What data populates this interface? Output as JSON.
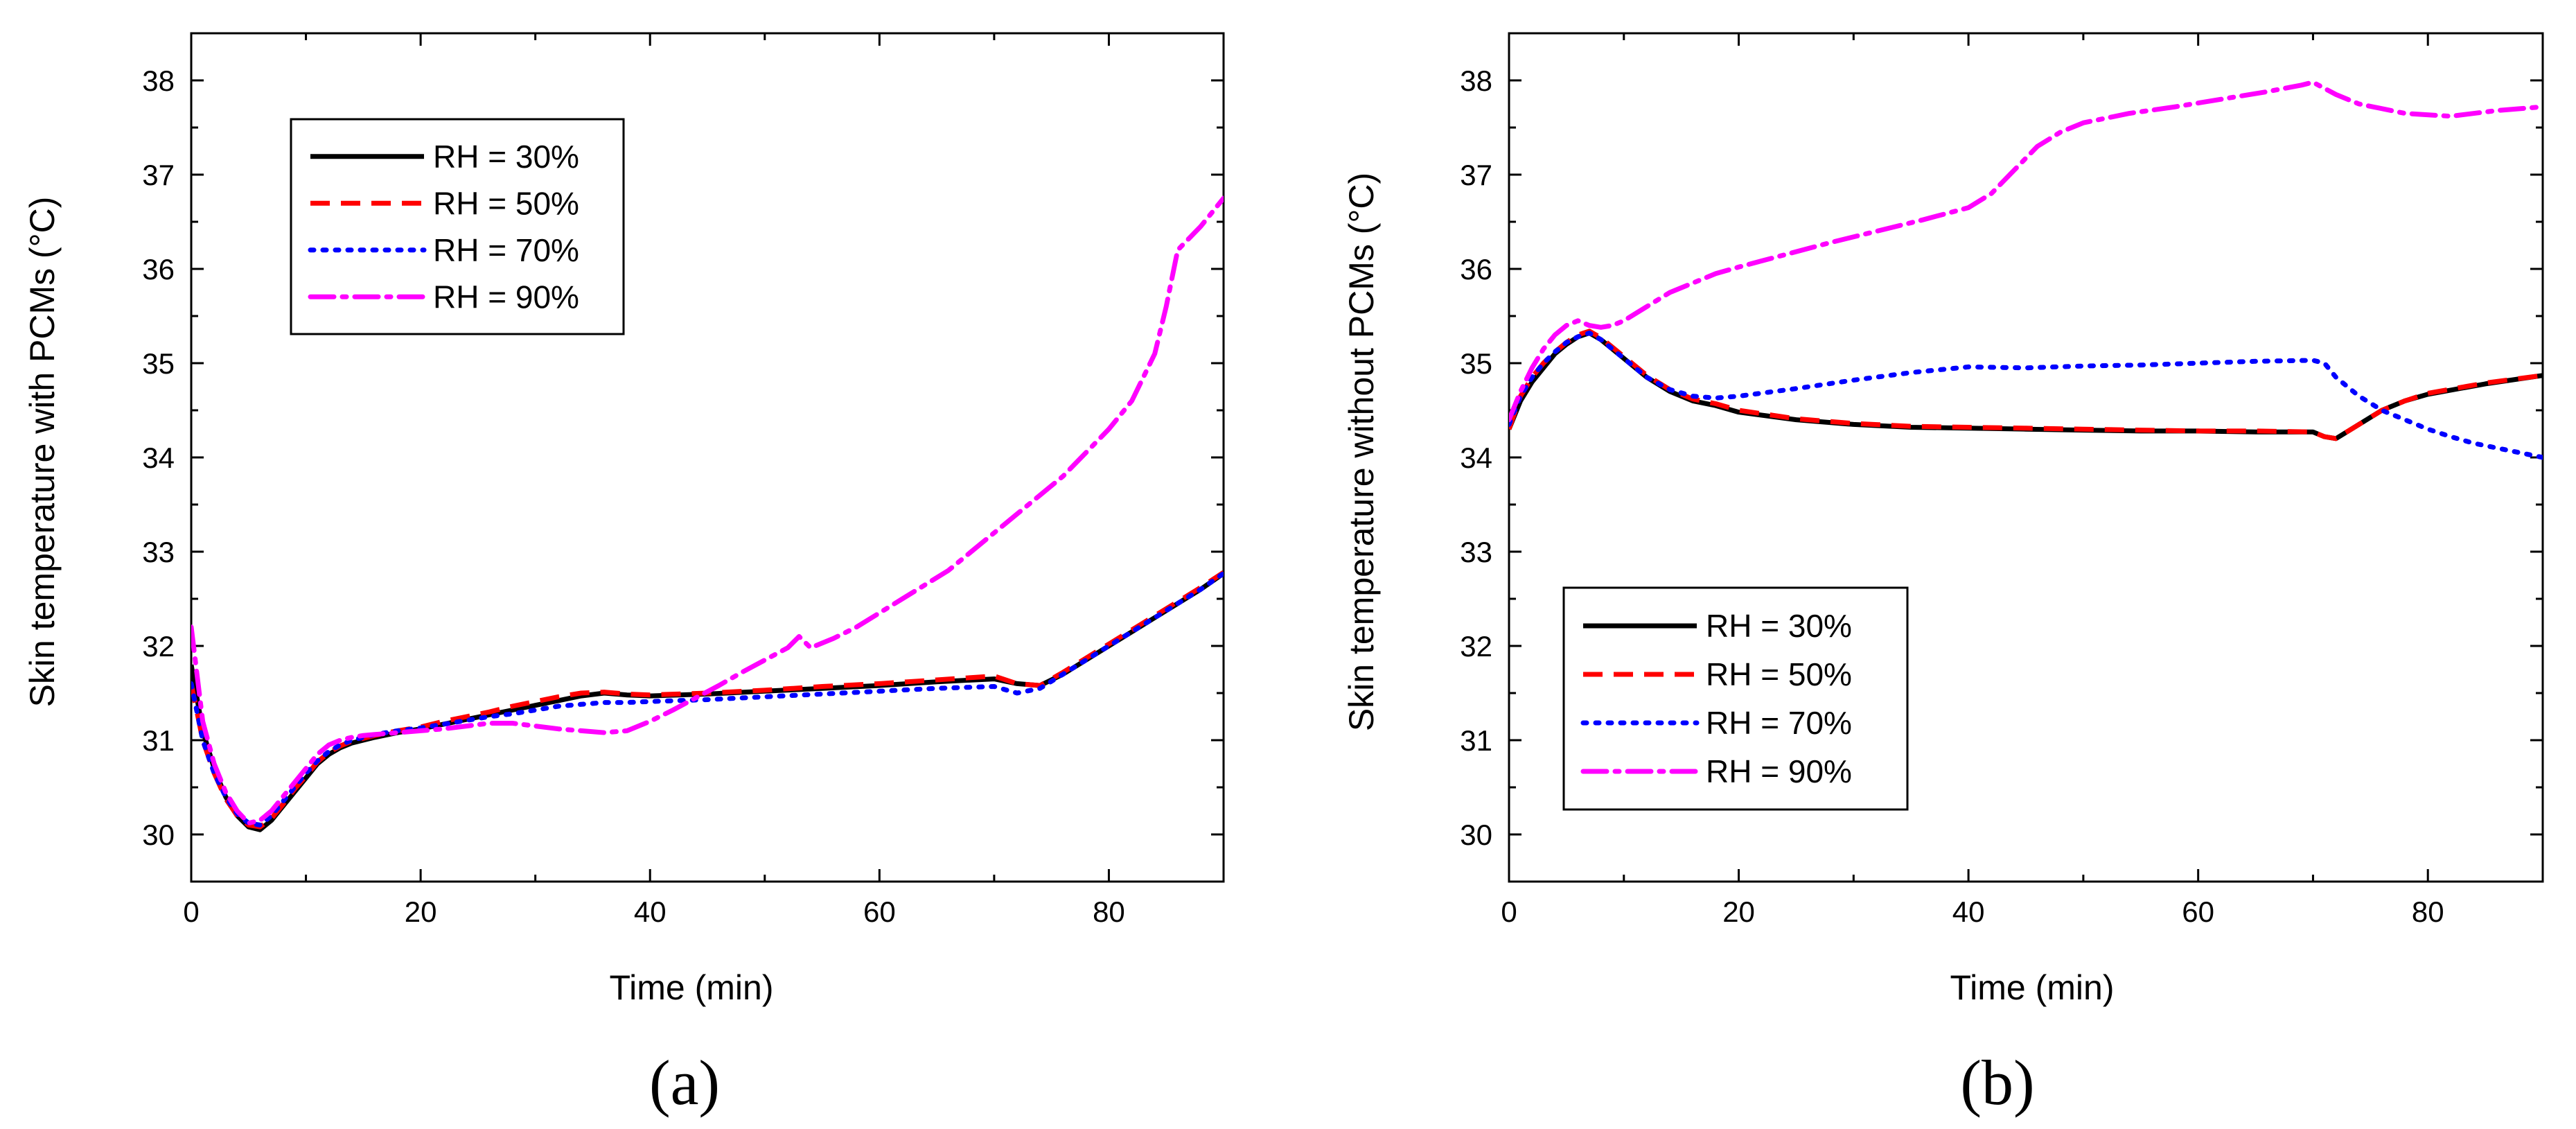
{
  "chart_data": [
    {
      "type": "line",
      "panel_label": "(a)",
      "xlabel": "Time (min)",
      "ylabel": "Skin temperature with PCMs (°C)",
      "xlim": [
        0,
        90
      ],
      "ylim": [
        29.5,
        38.5
      ],
      "xticks": [
        0,
        20,
        40,
        60,
        80
      ],
      "yticks": [
        30,
        31,
        32,
        33,
        34,
        35,
        36,
        37,
        38
      ],
      "legend_position": "top-left",
      "series": [
        {
          "name": "RH = 30%",
          "color": "#000000",
          "style": "solid",
          "x": [
            0,
            1,
            2,
            3,
            4,
            5,
            6,
            7,
            8,
            9,
            10,
            11,
            12,
            13,
            14,
            15,
            16,
            18,
            20,
            22,
            24,
            26,
            28,
            30,
            32,
            34,
            36,
            38,
            40,
            45,
            50,
            55,
            60,
            65,
            70,
            72,
            74,
            76,
            78,
            80,
            82,
            84,
            86,
            88,
            90
          ],
          "y": [
            31.8,
            31.1,
            30.7,
            30.4,
            30.2,
            30.08,
            30.05,
            30.15,
            30.3,
            30.45,
            30.6,
            30.75,
            30.85,
            30.92,
            30.97,
            31.0,
            31.03,
            31.08,
            31.12,
            31.17,
            31.22,
            31.27,
            31.32,
            31.37,
            31.42,
            31.47,
            31.5,
            31.48,
            31.47,
            31.49,
            31.52,
            31.55,
            31.58,
            31.62,
            31.65,
            31.6,
            31.58,
            31.7,
            31.85,
            32.0,
            32.15,
            32.3,
            32.45,
            32.6,
            32.77
          ]
        },
        {
          "name": "RH = 50%",
          "color": "#ff0000",
          "style": "dash",
          "x": [
            0,
            1,
            2,
            3,
            4,
            5,
            6,
            7,
            8,
            9,
            10,
            11,
            12,
            13,
            14,
            15,
            16,
            18,
            20,
            22,
            24,
            26,
            28,
            30,
            32,
            34,
            36,
            38,
            40,
            45,
            50,
            55,
            60,
            65,
            70,
            72,
            74,
            76,
            78,
            80,
            82,
            84,
            86,
            88,
            90
          ],
          "y": [
            31.6,
            31.0,
            30.65,
            30.38,
            30.2,
            30.1,
            30.08,
            30.17,
            30.32,
            30.48,
            30.62,
            30.77,
            30.87,
            30.94,
            30.99,
            31.02,
            31.05,
            31.1,
            31.14,
            31.2,
            31.25,
            31.3,
            31.36,
            31.41,
            31.46,
            31.5,
            31.51,
            31.49,
            31.48,
            31.5,
            31.53,
            31.57,
            31.6,
            31.64,
            31.68,
            31.6,
            31.58,
            31.72,
            31.87,
            32.02,
            32.17,
            32.32,
            32.47,
            32.62,
            32.78
          ]
        },
        {
          "name": "RH = 70%",
          "color": "#0000ff",
          "style": "dot",
          "x": [
            0,
            1,
            2,
            3,
            4,
            5,
            6,
            7,
            8,
            9,
            10,
            11,
            12,
            13,
            14,
            15,
            16,
            18,
            20,
            22,
            24,
            26,
            28,
            30,
            32,
            34,
            36,
            38,
            40,
            45,
            50,
            55,
            60,
            65,
            70,
            72,
            74,
            76,
            78,
            80,
            82,
            84,
            86,
            88,
            90
          ],
          "y": [
            31.6,
            31.0,
            30.65,
            30.4,
            30.22,
            30.12,
            30.1,
            30.2,
            30.35,
            30.5,
            30.65,
            30.78,
            30.88,
            30.95,
            31.0,
            31.03,
            31.06,
            31.1,
            31.13,
            31.17,
            31.21,
            31.25,
            31.28,
            31.32,
            31.36,
            31.38,
            31.4,
            31.4,
            31.41,
            31.43,
            31.46,
            31.49,
            31.52,
            31.55,
            31.57,
            31.5,
            31.55,
            31.7,
            31.85,
            32.0,
            32.15,
            32.3,
            32.45,
            32.6,
            32.77
          ]
        },
        {
          "name": "RH = 90%",
          "color": "#ff00ff",
          "style": "dashdot",
          "x": [
            0,
            1,
            2,
            3,
            4,
            5,
            6,
            7,
            8,
            9,
            10,
            11,
            12,
            13,
            14,
            15,
            16,
            18,
            20,
            22,
            24,
            26,
            28,
            30,
            32,
            34,
            36,
            38,
            40,
            42,
            44,
            46,
            48,
            50,
            52,
            53,
            54,
            56,
            58,
            60,
            62,
            64,
            66,
            68,
            70,
            72,
            74,
            76,
            78,
            80,
            82,
            84,
            85,
            86,
            88,
            90
          ],
          "y": [
            32.2,
            31.2,
            30.75,
            30.45,
            30.25,
            30.12,
            30.15,
            30.25,
            30.4,
            30.55,
            30.7,
            30.85,
            30.95,
            31.0,
            31.03,
            31.05,
            31.06,
            31.08,
            31.1,
            31.12,
            31.15,
            31.18,
            31.18,
            31.15,
            31.12,
            31.1,
            31.08,
            31.1,
            31.2,
            31.32,
            31.45,
            31.58,
            31.72,
            31.85,
            31.98,
            32.1,
            31.98,
            32.08,
            32.2,
            32.35,
            32.5,
            32.65,
            32.8,
            33.0,
            33.2,
            33.4,
            33.6,
            33.8,
            34.05,
            34.3,
            34.6,
            35.1,
            35.6,
            36.2,
            36.45,
            36.75
          ]
        }
      ]
    },
    {
      "type": "line",
      "panel_label": "(b)",
      "xlabel": "Time (min)",
      "ylabel": "Skin temperature without PCMs (°C)",
      "xlim": [
        0,
        90
      ],
      "ylim": [
        29.5,
        38.5
      ],
      "xticks": [
        0,
        20,
        40,
        60,
        80
      ],
      "yticks": [
        30,
        31,
        32,
        33,
        34,
        35,
        36,
        37,
        38
      ],
      "legend_position": "bottom-left",
      "series": [
        {
          "name": "RH = 30%",
          "color": "#000000",
          "style": "solid",
          "x": [
            0,
            1,
            2,
            3,
            4,
            5,
            6,
            7,
            8,
            9,
            10,
            12,
            14,
            16,
            18,
            20,
            25,
            30,
            35,
            40,
            45,
            50,
            55,
            60,
            65,
            70,
            71,
            72,
            74,
            76,
            78,
            80,
            85,
            90
          ],
          "y": [
            34.3,
            34.6,
            34.8,
            34.95,
            35.1,
            35.2,
            35.28,
            35.32,
            35.25,
            35.15,
            35.05,
            34.85,
            34.7,
            34.6,
            34.55,
            34.48,
            34.4,
            34.35,
            34.32,
            34.31,
            34.3,
            34.29,
            34.28,
            34.28,
            34.27,
            34.27,
            34.22,
            34.2,
            34.35,
            34.5,
            34.6,
            34.67,
            34.78,
            34.87
          ]
        },
        {
          "name": "RH = 50%",
          "color": "#ff0000",
          "style": "dash",
          "x": [
            0,
            1,
            2,
            3,
            4,
            5,
            6,
            7,
            8,
            9,
            10,
            12,
            14,
            16,
            18,
            20,
            25,
            30,
            35,
            40,
            45,
            50,
            55,
            60,
            65,
            70,
            71,
            72,
            74,
            76,
            78,
            80,
            85,
            90
          ],
          "y": [
            34.3,
            34.65,
            34.85,
            35.0,
            35.12,
            35.22,
            35.3,
            35.34,
            35.27,
            35.17,
            35.07,
            34.87,
            34.72,
            34.62,
            34.57,
            34.5,
            34.41,
            34.36,
            34.33,
            34.32,
            34.31,
            34.3,
            34.29,
            34.28,
            34.28,
            34.27,
            34.22,
            34.2,
            34.35,
            34.5,
            34.6,
            34.68,
            34.79,
            34.87
          ]
        },
        {
          "name": "RH = 70%",
          "color": "#0000ff",
          "style": "dot",
          "x": [
            0,
            1,
            2,
            3,
            4,
            5,
            6,
            7,
            8,
            9,
            10,
            12,
            14,
            16,
            18,
            20,
            25,
            30,
            35,
            40,
            45,
            50,
            55,
            60,
            65,
            70,
            71,
            72,
            74,
            76,
            78,
            80,
            82,
            84,
            86,
            88,
            90
          ],
          "y": [
            34.35,
            34.65,
            34.85,
            35.0,
            35.12,
            35.22,
            35.28,
            35.32,
            35.25,
            35.15,
            35.05,
            34.85,
            34.72,
            34.65,
            34.63,
            34.65,
            34.73,
            34.82,
            34.9,
            34.96,
            34.95,
            34.97,
            34.98,
            35.0,
            35.02,
            35.03,
            35.0,
            34.85,
            34.65,
            34.5,
            34.4,
            34.3,
            34.22,
            34.15,
            34.1,
            34.05,
            34.0
          ]
        },
        {
          "name": "RH = 90%",
          "color": "#ff00ff",
          "style": "dashdot",
          "x": [
            0,
            1,
            2,
            3,
            4,
            5,
            6,
            7,
            8,
            9,
            10,
            12,
            14,
            16,
            18,
            20,
            24,
            28,
            32,
            36,
            40,
            42,
            44,
            46,
            48,
            50,
            54,
            58,
            62,
            66,
            69,
            70,
            72,
            74,
            78,
            82,
            86,
            90
          ],
          "y": [
            34.4,
            34.7,
            34.95,
            35.15,
            35.3,
            35.4,
            35.45,
            35.4,
            35.38,
            35.4,
            35.45,
            35.6,
            35.75,
            35.85,
            35.95,
            36.02,
            36.15,
            36.28,
            36.4,
            36.52,
            36.65,
            36.8,
            37.05,
            37.3,
            37.45,
            37.55,
            37.65,
            37.72,
            37.8,
            37.88,
            37.95,
            37.98,
            37.85,
            37.75,
            37.65,
            37.62,
            37.68,
            37.72
          ]
        }
      ]
    }
  ]
}
